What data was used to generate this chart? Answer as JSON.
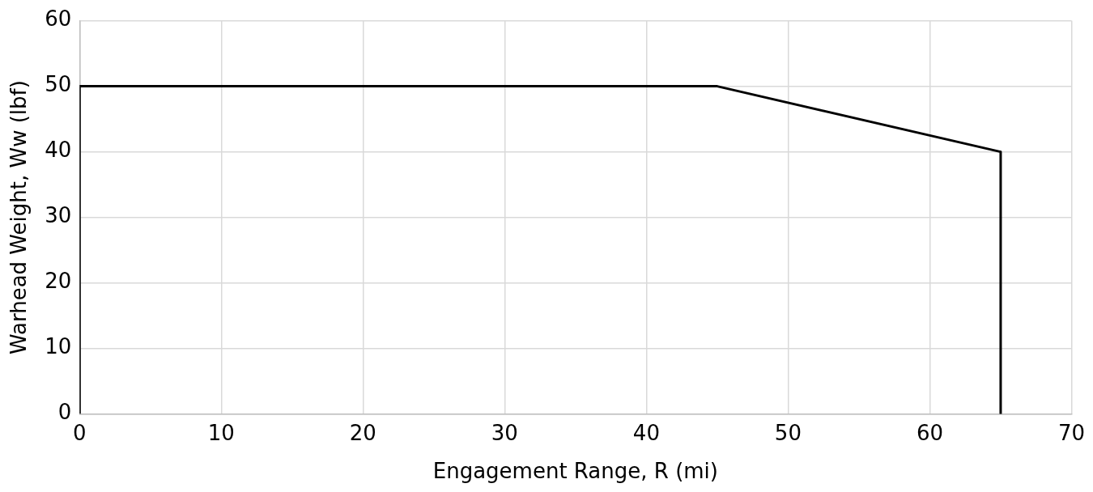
{
  "chart_data": {
    "type": "line",
    "xlabel": "Engagement Range, R (mi)",
    "ylabel": "Warhead Weight, Ww (lbf)",
    "x": [
      0,
      0,
      45,
      65,
      65
    ],
    "series": [
      {
        "color": "#000000",
        "values": [
          0,
          50,
          50,
          40,
          0
        ]
      }
    ],
    "xlim": [
      0,
      70
    ],
    "xticks": [
      0,
      10,
      20,
      30,
      40,
      50,
      60,
      70
    ],
    "ylim": [
      0,
      60
    ],
    "yticks": [
      0,
      10,
      20,
      30,
      40,
      50,
      60
    ],
    "grid": true,
    "legend": false,
    "marker": "none",
    "line_style": "solid"
  }
}
